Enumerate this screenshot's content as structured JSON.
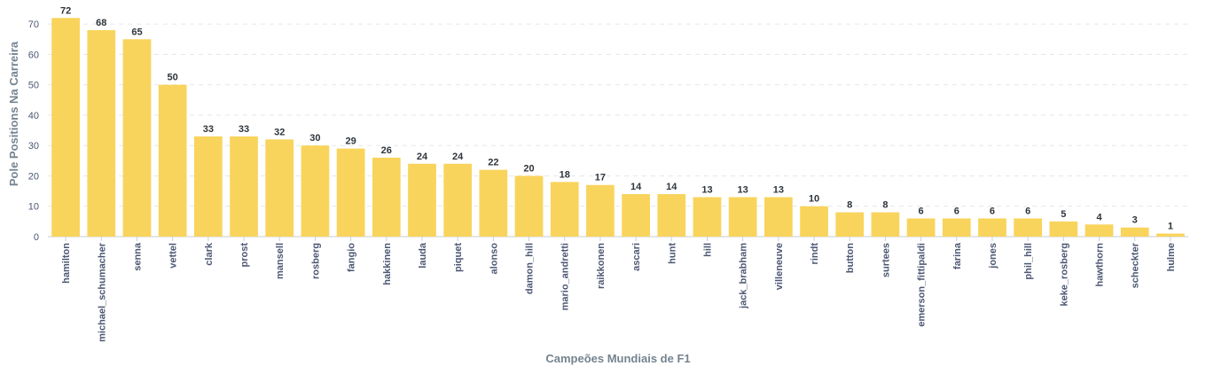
{
  "chart_data": {
    "type": "bar",
    "xlabel": "Campeões Mundiais de F1",
    "ylabel": "Pole Positions Na Carreira",
    "ylim": [
      0,
      75
    ],
    "yticks": [
      0,
      10,
      20,
      30,
      40,
      50,
      60,
      70
    ],
    "grid": "horizontal dashed",
    "bar_color": "#f9d45c",
    "categories": [
      "hamilton",
      "michael_schumacher",
      "senna",
      "vettel",
      "clark",
      "prost",
      "mansell",
      "rosberg",
      "fangio",
      "hakkinen",
      "lauda",
      "piquet",
      "alonso",
      "damon_hill",
      "mario_andretti",
      "raikkonen",
      "ascari",
      "hunt",
      "hill",
      "jack_brabham",
      "villeneuve",
      "rindt",
      "button",
      "surtees",
      "emerson_fittipaldi",
      "farina",
      "jones",
      "phil_hill",
      "keke_rosberg",
      "hawthorn",
      "scheckter",
      "hulme"
    ],
    "values": [
      72,
      68,
      65,
      50,
      33,
      33,
      32,
      30,
      29,
      26,
      24,
      24,
      22,
      20,
      18,
      17,
      14,
      14,
      13,
      13,
      13,
      10,
      8,
      8,
      6,
      6,
      6,
      6,
      5,
      4,
      3,
      1
    ]
  }
}
